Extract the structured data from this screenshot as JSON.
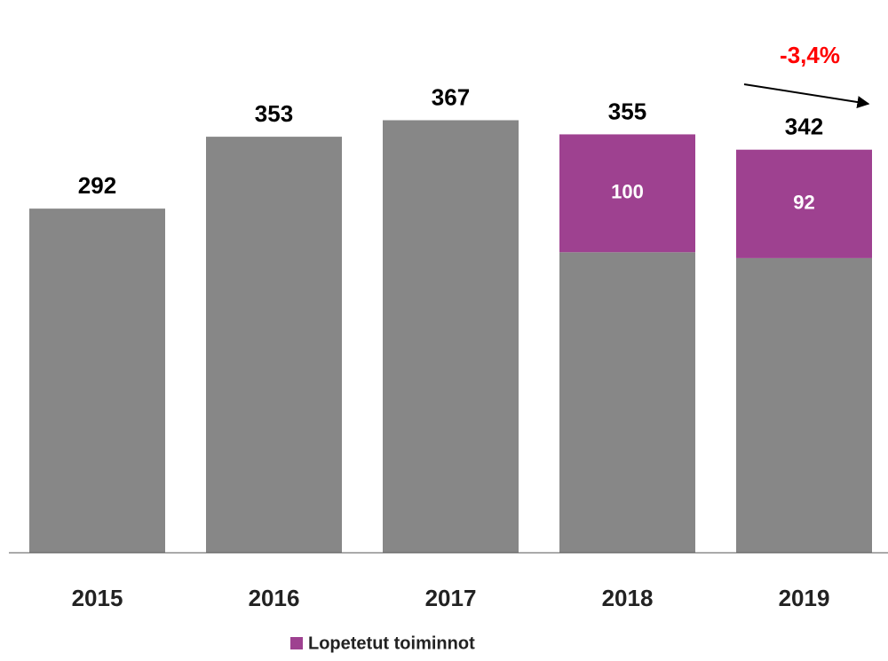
{
  "chart_data": {
    "type": "stacked_bar",
    "categories": [
      "2015",
      "2016",
      "2017",
      "2018",
      "2019"
    ],
    "series": [
      {
        "color": "#878787",
        "values": [
          292,
          353,
          367,
          255,
          250
        ]
      },
      {
        "name": "Lopetetut toiminnot",
        "color": "#9e4190",
        "values": [
          null,
          null,
          null,
          100,
          92
        ]
      }
    ],
    "totals": [
      292,
      353,
      367,
      355,
      342
    ],
    "annotation": "-3,4%",
    "ylim": [
      0,
      469
    ],
    "legend": "bottom"
  }
}
